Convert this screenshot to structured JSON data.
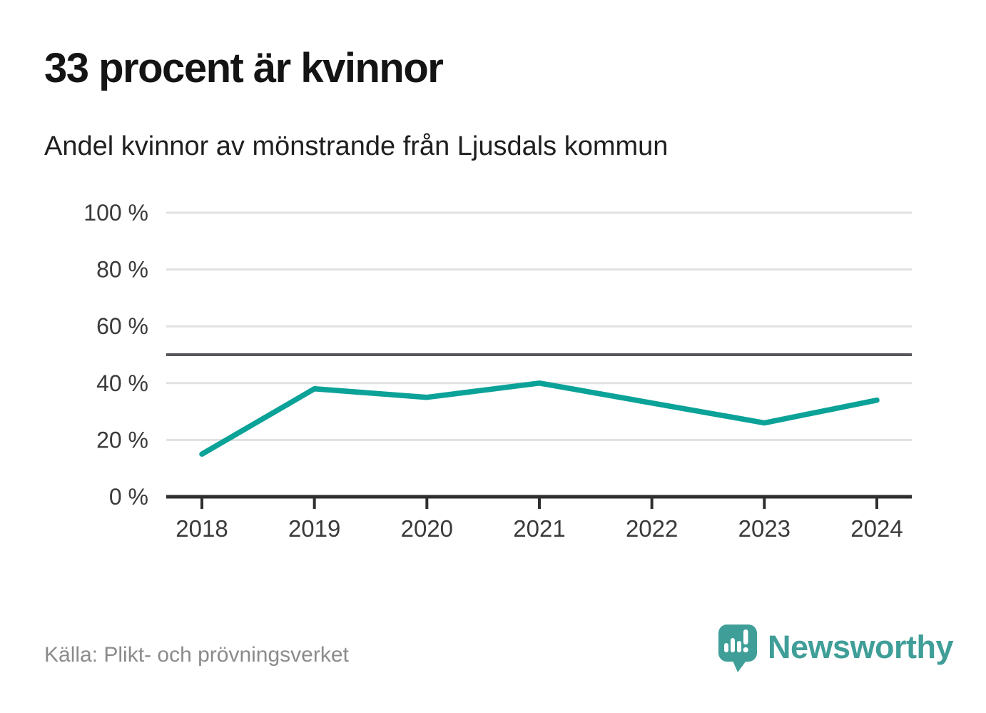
{
  "header": {
    "title": "33 procent är kvinnor",
    "subtitle": "Andel kvinnor av mönstrande från Ljusdals kommun"
  },
  "chart_data": {
    "type": "line",
    "title": "Andel kvinnor av mönstrande från Ljusdals kommun",
    "categories": [
      2018,
      2019,
      2020,
      2021,
      2022,
      2023,
      2024
    ],
    "series": [
      {
        "name": "Andel kvinnor (%)",
        "values": [
          15,
          38,
          35,
          40,
          33,
          26,
          34
        ]
      }
    ],
    "unit": "%",
    "ylim": [
      0,
      100
    ],
    "yticks": [
      0,
      20,
      40,
      60,
      80,
      100
    ],
    "ytick_suffix": " %",
    "reference_line": 50,
    "grid": true,
    "legend_position": "none"
  },
  "footer": {
    "source": "Källa: Plikt- och prövningsverket",
    "brand": "Newsworthy"
  },
  "colors": {
    "line": "#0ba298",
    "reference": "#54565c",
    "grid": "#e1e1e1",
    "axis": "#2f2f2f",
    "tick_label": "#3a3a3a",
    "brand_teal": "#3f9e98"
  }
}
